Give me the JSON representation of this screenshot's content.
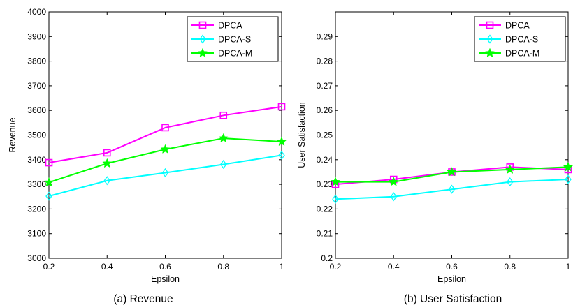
{
  "colors": {
    "DPCA": "#ff00ff",
    "DPCA-S": "#00ffff",
    "DPCA-M": "#00ff00",
    "axis": "#000000",
    "background": "#ffffff"
  },
  "chart_data": [
    {
      "type": "line",
      "caption": "(a) Revenue",
      "xlabel": "Epsilon",
      "ylabel": "Revenue",
      "x": [
        0.2,
        0.4,
        0.6,
        0.8,
        1
      ],
      "xlim": [
        0.2,
        1
      ],
      "ylim": [
        3000,
        4000
      ],
      "xticks": [
        0.2,
        0.4,
        0.6,
        0.8,
        1
      ],
      "xtick_labels": [
        "0.2",
        "0.4",
        "0.6",
        "0.8",
        "1"
      ],
      "yticks": [
        3000,
        3100,
        3200,
        3300,
        3400,
        3500,
        3600,
        3700,
        3800,
        3900,
        4000
      ],
      "ytick_labels": [
        "3000",
        "3100",
        "3200",
        "3300",
        "3400",
        "3500",
        "3600",
        "3700",
        "3800",
        "3900",
        "4000"
      ],
      "grid": false,
      "legend_position": "top-right",
      "series": [
        {
          "name": "DPCA",
          "marker": "square",
          "values": [
            3388,
            3428,
            3530,
            3580,
            3615
          ]
        },
        {
          "name": "DPCA-S",
          "marker": "diamond",
          "values": [
            3252,
            3315,
            3347,
            3381,
            3418
          ]
        },
        {
          "name": "DPCA-M",
          "marker": "star",
          "values": [
            3308,
            3385,
            3442,
            3487,
            3473
          ]
        }
      ]
    },
    {
      "type": "line",
      "caption": "(b) User Satisfaction",
      "xlabel": "Epsilon",
      "ylabel": "User Satisfaction",
      "x": [
        0.2,
        0.4,
        0.6,
        0.8,
        1
      ],
      "xlim": [
        0.2,
        1
      ],
      "ylim": [
        0.2,
        0.3
      ],
      "xticks": [
        0.2,
        0.4,
        0.6,
        0.8,
        1
      ],
      "xtick_labels": [
        "0.2",
        "0.4",
        "0.6",
        "0.8",
        "1"
      ],
      "yticks": [
        0.2,
        0.21,
        0.22,
        0.23,
        0.24,
        0.25,
        0.26,
        0.27,
        0.28,
        0.29
      ],
      "ytick_labels": [
        "0.2",
        "0.21",
        "0.22",
        "0.23",
        "0.24",
        "0.25",
        "0.26",
        "0.27",
        "0.28",
        "0.29"
      ],
      "grid": false,
      "legend_position": "top-right",
      "series": [
        {
          "name": "DPCA",
          "marker": "square",
          "values": [
            0.23,
            0.232,
            0.235,
            0.237,
            0.236
          ]
        },
        {
          "name": "DPCA-S",
          "marker": "diamond",
          "values": [
            0.224,
            0.225,
            0.228,
            0.231,
            0.232
          ]
        },
        {
          "name": "DPCA-M",
          "marker": "star",
          "values": [
            0.231,
            0.231,
            0.235,
            0.236,
            0.237
          ]
        }
      ]
    }
  ]
}
